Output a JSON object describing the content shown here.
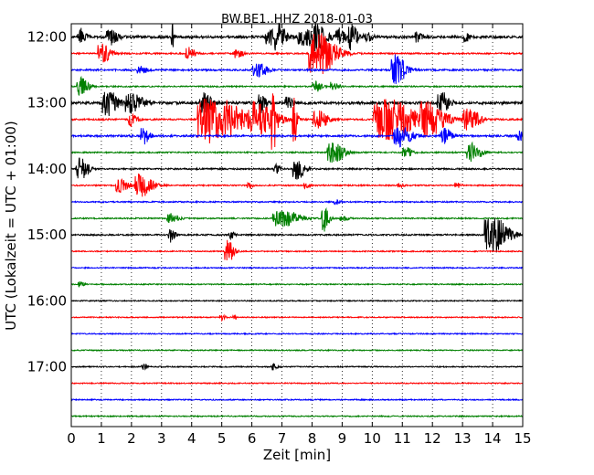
{
  "chart_data": {
    "type": "line",
    "title": "BW.BE1..HHZ 2018-01-03",
    "xlabel": "Zeit  [min]",
    "ylabel": "UTC (Lokalzeit = UTC + 01:00)",
    "xlim": [
      0,
      15
    ],
    "x_ticks": [
      "0",
      "1",
      "2",
      "3",
      "4",
      "5",
      "6",
      "7",
      "8",
      "9",
      "10",
      "11",
      "12",
      "13",
      "14",
      "15"
    ],
    "y_ticks": [
      "12:00",
      "13:00",
      "14:00",
      "15:00",
      "16:00",
      "17:00"
    ],
    "grid": true,
    "trace_interval_min": 15,
    "series_colors": [
      "#000000",
      "#ff0000",
      "#0000ff",
      "#008000"
    ],
    "traces": [
      {
        "start": "12:00",
        "noise": 1.3,
        "events": [
          [
            0.3,
            9,
            0.3
          ],
          [
            1.3,
            8,
            0.4
          ],
          [
            3.35,
            14,
            0.08
          ],
          [
            6.6,
            8,
            0.5
          ],
          [
            6.9,
            12,
            0.4
          ],
          [
            7.7,
            10,
            0.5
          ],
          [
            8.1,
            13,
            0.6
          ],
          [
            8.9,
            9,
            0.3
          ],
          [
            9.3,
            16,
            0.3
          ],
          [
            9.8,
            6,
            0.3
          ],
          [
            11.5,
            5,
            0.3
          ],
          [
            13.1,
            5,
            0.2
          ]
        ]
      },
      {
        "start": "12:15",
        "noise": 0.8,
        "events": [
          [
            1.0,
            14,
            0.4
          ],
          [
            3.9,
            7,
            0.3
          ],
          [
            5.5,
            5,
            0.3
          ],
          [
            8.2,
            24,
            0.9
          ]
        ]
      },
      {
        "start": "12:30",
        "noise": 0.9,
        "events": [
          [
            2.3,
            5,
            0.3
          ],
          [
            6.2,
            7,
            0.5
          ],
          [
            10.8,
            17,
            0.5
          ]
        ]
      },
      {
        "start": "12:45",
        "noise": 0.7,
        "events": [
          [
            0.3,
            10,
            0.4
          ],
          [
            8.1,
            7,
            0.3
          ],
          [
            8.7,
            5,
            0.3
          ]
        ]
      },
      {
        "start": "13:00",
        "noise": 1.4,
        "events": [
          [
            1.2,
            14,
            0.5
          ],
          [
            2.0,
            10,
            0.6
          ],
          [
            4.4,
            11,
            0.4
          ],
          [
            6.3,
            10,
            0.3
          ],
          [
            7.2,
            6,
            0.3
          ],
          [
            12.3,
            12,
            0.4
          ]
        ]
      },
      {
        "start": "13:15",
        "noise": 0.9,
        "events": [
          [
            2.0,
            7,
            0.3
          ],
          [
            4.7,
            26,
            1.5
          ],
          [
            6.2,
            15,
            1.0
          ],
          [
            6.7,
            30,
            0.15
          ],
          [
            7.4,
            32,
            0.15
          ],
          [
            8.2,
            10,
            0.5
          ],
          [
            10.5,
            22,
            1.4
          ],
          [
            11.9,
            16,
            0.9
          ],
          [
            13.2,
            11,
            0.6
          ]
        ]
      },
      {
        "start": "13:30",
        "noise": 1.0,
        "events": [
          [
            2.4,
            9,
            0.3
          ],
          [
            10.9,
            11,
            0.6
          ],
          [
            12.4,
            8,
            0.4
          ],
          [
            14.9,
            5,
            0.2
          ]
        ]
      },
      {
        "start": "13:45",
        "noise": 0.7,
        "events": [
          [
            8.7,
            11,
            0.6
          ],
          [
            11.1,
            7,
            0.3
          ],
          [
            13.3,
            10,
            0.5
          ]
        ]
      },
      {
        "start": "14:00",
        "noise": 0.8,
        "events": [
          [
            0.3,
            12,
            0.4
          ],
          [
            6.8,
            5,
            0.2
          ],
          [
            7.5,
            11,
            0.4
          ]
        ]
      },
      {
        "start": "14:15",
        "noise": 0.7,
        "events": [
          [
            1.6,
            8,
            0.4
          ],
          [
            2.3,
            13,
            0.6
          ],
          [
            5.9,
            3,
            0.2
          ],
          [
            7.8,
            3,
            0.2
          ],
          [
            10.9,
            3,
            0.2
          ],
          [
            12.8,
            3,
            0.2
          ]
        ]
      },
      {
        "start": "14:30",
        "noise": 0.7,
        "events": [
          [
            8.8,
            3,
            0.2
          ]
        ]
      },
      {
        "start": "14:45",
        "noise": 0.7,
        "events": [
          [
            3.3,
            5,
            0.4
          ],
          [
            7.0,
            9,
            0.9
          ],
          [
            8.4,
            14,
            0.25
          ],
          [
            9.0,
            3,
            0.3
          ]
        ]
      },
      {
        "start": "15:00",
        "noise": 0.8,
        "events": [
          [
            3.3,
            8,
            0.2
          ],
          [
            5.3,
            4,
            0.2
          ],
          [
            14.0,
            21,
            0.8
          ]
        ]
      },
      {
        "start": "15:15",
        "noise": 0.6,
        "events": [
          [
            5.2,
            13,
            0.3
          ]
        ]
      },
      {
        "start": "15:30",
        "noise": 0.6,
        "events": []
      },
      {
        "start": "15:45",
        "noise": 0.6,
        "events": [
          [
            0.3,
            3,
            0.2
          ]
        ]
      },
      {
        "start": "16:00",
        "noise": 0.6,
        "events": []
      },
      {
        "start": "16:15",
        "noise": 0.6,
        "events": [
          [
            5.0,
            3,
            0.2
          ],
          [
            5.4,
            5,
            0.1
          ]
        ]
      },
      {
        "start": "16:30",
        "noise": 0.6,
        "events": []
      },
      {
        "start": "16:45",
        "noise": 0.6,
        "events": []
      },
      {
        "start": "17:00",
        "noise": 0.6,
        "events": [
          [
            2.4,
            3,
            0.2
          ],
          [
            6.7,
            4,
            0.2
          ]
        ]
      },
      {
        "start": "17:15",
        "noise": 0.6,
        "events": []
      },
      {
        "start": "17:30",
        "noise": 0.6,
        "events": []
      },
      {
        "start": "17:45",
        "noise": 0.6,
        "events": []
      }
    ]
  }
}
